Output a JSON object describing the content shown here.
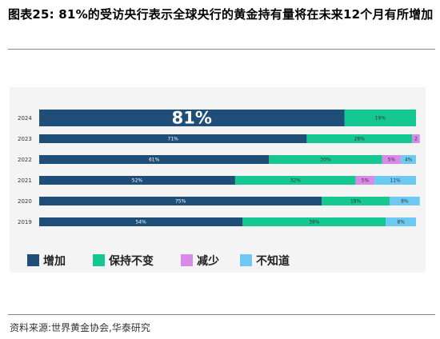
{
  "title": "图表25:  81%的受访央行表示全球央行的黄金持有量将在未来12个月有所增加",
  "source": "资料来源:世界黄金协会,华泰研究",
  "chart_data": {
    "type": "bar",
    "orientation": "horizontal",
    "stacked": true,
    "categories": [
      "2024",
      "2023",
      "2022",
      "2021",
      "2020",
      "2019"
    ],
    "series": [
      {
        "name": "增加",
        "color": "#1f4e79",
        "values": [
          81,
          71,
          61,
          52,
          75,
          54
        ],
        "labels": [
          "81%",
          "71%",
          "61%",
          "52%",
          "75%",
          "54%"
        ]
      },
      {
        "name": "保持不变",
        "color": "#15c790",
        "values": [
          19,
          28,
          30,
          32,
          18,
          38
        ],
        "labels": [
          "19%",
          "28%",
          "30%",
          "32%",
          "18%",
          "38%"
        ]
      },
      {
        "name": "减少",
        "color": "#d98ae8",
        "values": [
          0,
          2,
          5,
          5,
          0,
          0
        ],
        "labels": [
          "",
          "2",
          "5%",
          "5%",
          "",
          ""
        ]
      },
      {
        "name": "不知道",
        "color": "#6ec9f2",
        "values": [
          0,
          0,
          4,
          11,
          8,
          8
        ],
        "labels": [
          "",
          "",
          "4%",
          "11%",
          "8%",
          "8%"
        ]
      }
    ],
    "xlim": [
      0,
      100
    ],
    "grid": false,
    "legend_position": "bottom-left",
    "highlight_category": "2024"
  }
}
